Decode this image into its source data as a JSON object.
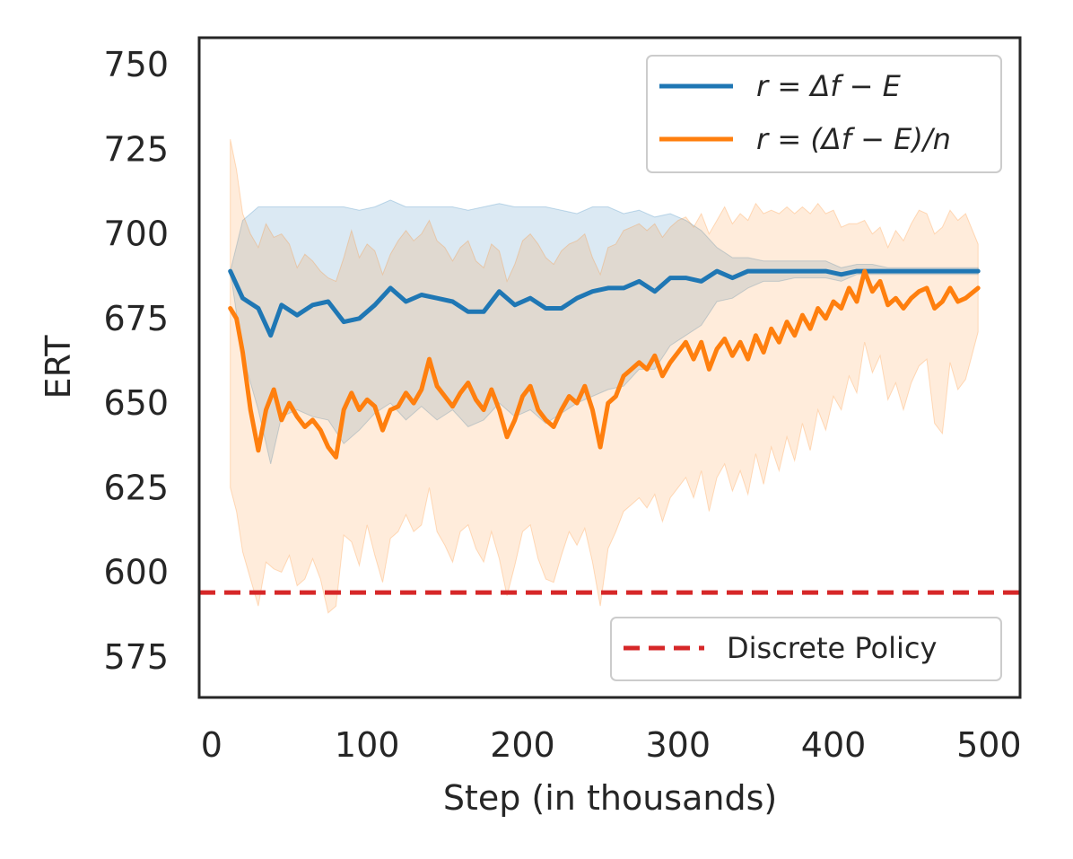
{
  "chart_data": {
    "type": "line",
    "title": "",
    "xlabel": "Step (in thousands)",
    "ylabel": "ERT",
    "xlim": [
      -8,
      520
    ],
    "ylim": [
      563,
      758
    ],
    "xticks": [
      0,
      100,
      200,
      300,
      400,
      500
    ],
    "yticks": [
      575,
      600,
      625,
      650,
      675,
      700,
      725,
      750
    ],
    "grid": false,
    "colors": {
      "series0": "#1f77b4",
      "series1": "#ff7f0e",
      "baseline": "#d62728",
      "axis": "#262626",
      "legend_border": "#cccccc"
    },
    "series": [
      {
        "name": "r = Δf − E",
        "legend_label": "r = Δf − E",
        "x": [
          12,
          20,
          30,
          38,
          45,
          55,
          65,
          75,
          85,
          95,
          105,
          115,
          125,
          135,
          145,
          155,
          165,
          175,
          185,
          195,
          205,
          215,
          225,
          235,
          245,
          255,
          265,
          275,
          285,
          295,
          305,
          315,
          325,
          335,
          345,
          355,
          365,
          375,
          385,
          395,
          405,
          415,
          425,
          435,
          445,
          455,
          465,
          475,
          485,
          493
        ],
        "values": [
          689,
          681,
          678,
          670,
          679,
          676,
          679,
          680,
          674,
          675,
          679,
          684,
          680,
          682,
          681,
          680,
          677,
          677,
          683,
          679,
          681,
          678,
          678,
          681,
          683,
          684,
          684,
          686,
          683,
          687,
          687,
          686,
          689,
          687,
          689,
          689,
          689,
          689,
          689,
          689,
          688,
          689,
          689,
          689,
          689,
          689,
          689,
          689,
          689,
          689
        ],
        "upper": [
          689,
          704,
          708,
          708,
          708,
          708,
          708,
          708,
          708,
          707,
          708,
          710,
          708,
          708,
          708,
          708,
          707,
          708,
          709,
          708,
          708,
          708,
          707,
          706,
          708,
          708,
          706,
          707,
          705,
          706,
          704,
          701,
          696,
          693,
          693,
          692,
          692,
          692,
          692,
          692,
          690,
          691,
          691,
          690,
          690,
          690,
          690,
          690,
          690,
          690
        ],
        "lower": [
          689,
          664,
          648,
          632,
          646,
          648,
          646,
          645,
          638,
          642,
          647,
          650,
          645,
          649,
          645,
          648,
          643,
          645,
          650,
          646,
          648,
          644,
          647,
          650,
          652,
          654,
          655,
          660,
          660,
          667,
          670,
          673,
          680,
          681,
          684,
          686,
          686,
          687,
          687,
          687,
          686,
          688,
          688,
          688,
          688,
          688,
          688,
          688,
          688,
          688
        ]
      },
      {
        "name": "r = (Δf − E)/n",
        "legend_label": "r = (Δf − E)/n",
        "x": [
          12,
          16,
          20,
          25,
          30,
          35,
          40,
          45,
          50,
          55,
          60,
          65,
          70,
          75,
          80,
          85,
          90,
          95,
          100,
          105,
          110,
          115,
          120,
          125,
          130,
          135,
          140,
          145,
          150,
          155,
          160,
          165,
          170,
          175,
          180,
          185,
          190,
          195,
          200,
          205,
          210,
          215,
          220,
          225,
          230,
          235,
          240,
          245,
          250,
          255,
          260,
          265,
          270,
          275,
          280,
          285,
          290,
          295,
          300,
          305,
          310,
          315,
          320,
          325,
          330,
          335,
          340,
          345,
          350,
          355,
          360,
          365,
          370,
          375,
          380,
          385,
          390,
          395,
          400,
          405,
          410,
          415,
          420,
          425,
          430,
          435,
          440,
          445,
          450,
          455,
          460,
          465,
          470,
          475,
          480,
          485,
          493
        ],
        "values": [
          678,
          675,
          665,
          648,
          636,
          648,
          654,
          645,
          650,
          646,
          643,
          645,
          642,
          637,
          634,
          648,
          653,
          648,
          651,
          649,
          642,
          648,
          649,
          653,
          650,
          654,
          663,
          655,
          652,
          649,
          653,
          656,
          651,
          648,
          654,
          648,
          640,
          645,
          652,
          655,
          648,
          645,
          643,
          648,
          652,
          650,
          655,
          648,
          637,
          650,
          652,
          658,
          660,
          662,
          660,
          664,
          658,
          662,
          665,
          668,
          663,
          668,
          660,
          666,
          669,
          664,
          668,
          663,
          670,
          665,
          672,
          668,
          674,
          670,
          676,
          672,
          678,
          675,
          680,
          678,
          684,
          680,
          689,
          683,
          686,
          679,
          681,
          678,
          681,
          683,
          684,
          678,
          680,
          684,
          680,
          681,
          684
        ],
        "upper": [
          728,
          719,
          706,
          700,
          696,
          703,
          699,
          700,
          697,
          690,
          694,
          692,
          689,
          687,
          686,
          693,
          701,
          693,
          697,
          695,
          688,
          694,
          698,
          701,
          698,
          700,
          704,
          698,
          696,
          692,
          696,
          698,
          692,
          690,
          697,
          695,
          686,
          691,
          698,
          700,
          697,
          693,
          691,
          695,
          697,
          698,
          700,
          693,
          688,
          696,
          697,
          701,
          702,
          703,
          701,
          703,
          699,
          702,
          704,
          705,
          702,
          706,
          700,
          704,
          708,
          703,
          706,
          704,
          709,
          706,
          707,
          706,
          708,
          706,
          708,
          706,
          709,
          706,
          707,
          702,
          703,
          703,
          704,
          700,
          702,
          696,
          701,
          698,
          703,
          707,
          706,
          700,
          702,
          707,
          704,
          706,
          697
        ],
        "lower": [
          625,
          618,
          606,
          598,
          590,
          603,
          601,
          600,
          605,
          596,
          598,
          604,
          598,
          588,
          590,
          611,
          609,
          602,
          614,
          605,
          597,
          610,
          612,
          617,
          612,
          614,
          625,
          612,
          608,
          603,
          612,
          614,
          607,
          603,
          612,
          604,
          593,
          602,
          612,
          614,
          604,
          598,
          597,
          605,
          612,
          608,
          613,
          603,
          590,
          607,
          612,
          618,
          620,
          622,
          619,
          623,
          615,
          622,
          625,
          628,
          622,
          630,
          618,
          628,
          632,
          624,
          630,
          623,
          635,
          626,
          637,
          630,
          640,
          633,
          644,
          636,
          648,
          642,
          652,
          648,
          658,
          653,
          668,
          659,
          664,
          651,
          656,
          648,
          656,
          661,
          663,
          644,
          641,
          662,
          654,
          657,
          671
        ]
      }
    ],
    "baseline": {
      "name": "Discrete Policy",
      "value": 594,
      "style": "dashed"
    },
    "legend_upper": {
      "placement": "top-right",
      "entries": [
        "r = Δf − E",
        "r = (Δf − E)/n"
      ]
    },
    "legend_lower": {
      "placement": "bottom-right",
      "entries": [
        "Discrete Policy"
      ]
    }
  }
}
